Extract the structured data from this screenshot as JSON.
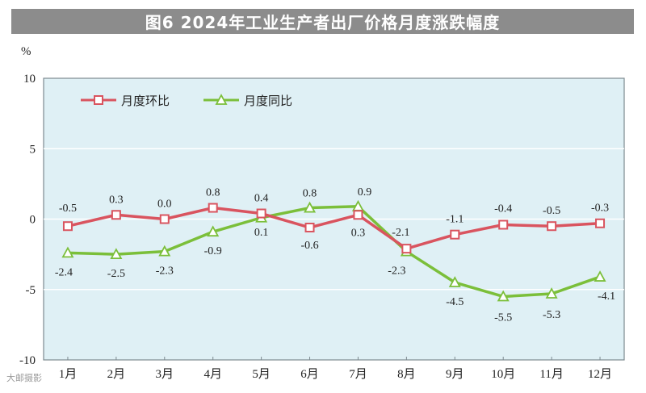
{
  "title": "图6  2024年工业生产者出厂价格月度涨跌幅度",
  "unit_label": "%",
  "watermark": "大邮摄影",
  "chart_data": {
    "type": "line",
    "categories": [
      "1月",
      "2月",
      "3月",
      "4月",
      "5月",
      "6月",
      "7月",
      "8月",
      "9月",
      "10月",
      "11月",
      "12月"
    ],
    "ylim": [
      -10,
      10
    ],
    "yticks": [
      "10",
      "5",
      "0",
      "-5",
      "-10"
    ],
    "grid": true,
    "legend_position": "top-left",
    "series": [
      {
        "name": "月度环比",
        "color": "#d9545f",
        "marker": "square",
        "values": [
          -0.5,
          0.3,
          0.0,
          0.8,
          0.4,
          -0.6,
          0.3,
          -2.1,
          -1.1,
          -0.4,
          -0.5,
          -0.3
        ],
        "labels": [
          "-0.5",
          "0.3",
          "0.0",
          "0.8",
          "0.4",
          "-0.6",
          "0.3",
          "-2.1",
          "-1.1",
          "-0.4",
          "-0.5",
          "-0.3"
        ]
      },
      {
        "name": "月度同比",
        "color": "#7bbf3a",
        "marker": "triangle",
        "values": [
          -2.4,
          -2.5,
          -2.3,
          -0.9,
          0.1,
          0.8,
          0.9,
          -2.3,
          -4.5,
          -5.5,
          -5.3,
          -4.1
        ],
        "labels": [
          "-2.4",
          "-2.5",
          "-2.3",
          "-0.9",
          "0.1",
          "0.8",
          "0.9",
          "-2.3",
          "-4.5",
          "-5.5",
          "-5.3",
          "-4.1"
        ]
      }
    ]
  }
}
